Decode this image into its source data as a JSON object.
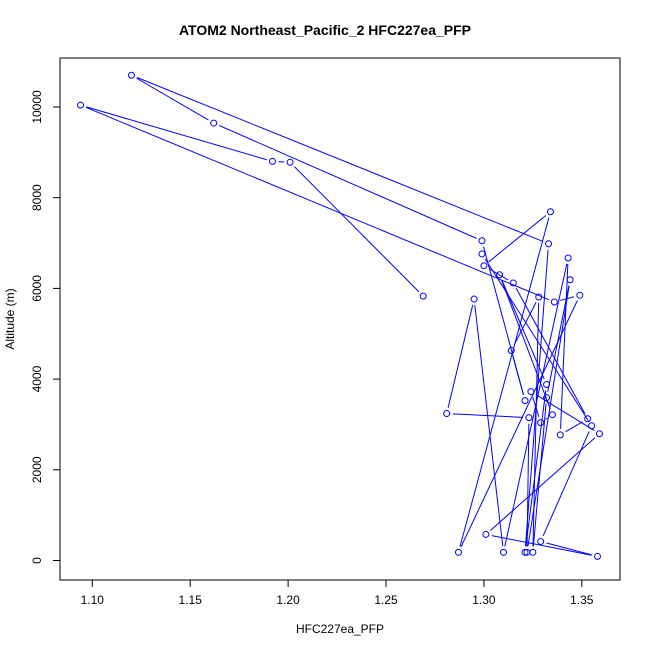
{
  "chart_data": {
    "type": "line",
    "title": "ATOM2 Northeast_Pacific_2 HFC227ea_PFP",
    "xlabel": "HFC227ea_PFP",
    "ylabel": "Altitude (m)",
    "xlim": [
      1.0835,
      1.3695
    ],
    "ylim": [
      -430,
      11080
    ],
    "xticks": [
      1.1,
      1.15,
      1.2,
      1.25,
      1.3,
      1.35
    ],
    "xtick_labels": [
      "1.10",
      "1.15",
      "1.20",
      "1.25",
      "1.30",
      "1.35"
    ],
    "yticks": [
      0,
      2000,
      4000,
      6000,
      8000,
      10000
    ],
    "ytick_labels": [
      "0",
      "2000",
      "4000",
      "6000",
      "8000",
      "10000"
    ],
    "grid": false,
    "color": "#0000ff",
    "marker": "open-circle",
    "series": [
      {
        "name": "HFC227ea_PFP",
        "x": [
          1.269,
          1.201,
          1.192,
          1.094,
          1.336,
          1.349,
          1.287,
          1.334,
          1.3,
          1.315,
          1.353,
          1.339,
          1.343,
          1.31,
          1.295,
          1.281,
          1.323,
          1.322,
          1.344,
          1.332,
          1.325,
          1.328,
          1.314,
          1.321,
          1.299,
          1.162,
          1.12,
          1.333,
          1.321,
          1.332,
          1.308,
          1.335,
          1.329,
          1.324,
          1.359,
          1.301,
          1.358,
          1.329,
          1.355,
          1.299
        ],
        "y": [
          5830,
          8780,
          8800,
          10040,
          5700,
          5850,
          180,
          7690,
          6500,
          6120,
          3125,
          2770,
          6670,
          180,
          5765,
          3240,
          3150,
          180,
          6190,
          3590,
          180,
          5810,
          4630,
          3525,
          7050,
          9645,
          10700,
          6985,
          180,
          3880,
          6300,
          3215,
          3040,
          3725,
          2795,
          575,
          90,
          420,
          2970,
          6760
        ]
      }
    ]
  }
}
